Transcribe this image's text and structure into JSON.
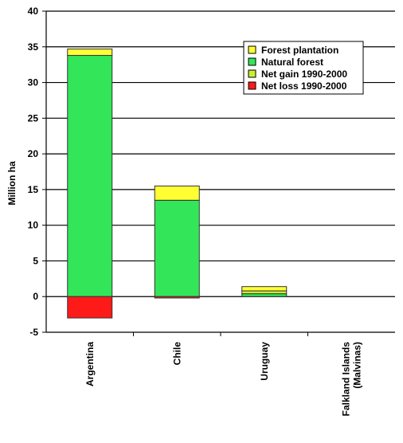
{
  "chart_data": {
    "type": "bar",
    "stacked": true,
    "title": "",
    "xlabel": "",
    "ylabel": "Million ha",
    "ylim": [
      -5,
      40
    ],
    "yticks": [
      -5,
      0,
      5,
      10,
      15,
      20,
      25,
      30,
      35,
      40
    ],
    "grid": true,
    "legend_position": "top-right",
    "categories": [
      "Argentina",
      "Chile",
      "Uruguay",
      "Falkland Islands (Malvinas)"
    ],
    "category_lines": [
      [
        "Argentina"
      ],
      [
        "Chile"
      ],
      [
        "Uruguay"
      ],
      [
        "Falkland Islands",
        "(Malvinas)"
      ]
    ],
    "series": [
      {
        "name": "Forest plantation",
        "color": "#ffff33",
        "values": [
          0.9,
          2.0,
          0.6,
          0
        ]
      },
      {
        "name": "Natural forest",
        "color": "#33e659",
        "values": [
          33.8,
          13.5,
          0.4,
          0
        ]
      },
      {
        "name": "Net gain 1990-2000",
        "color": "#c8ee33",
        "values": [
          0,
          0,
          0.4,
          0
        ]
      },
      {
        "name": "Net loss 1990-2000",
        "color": "#ff1a1a",
        "values": [
          -3.0,
          -0.2,
          0,
          0
        ]
      }
    ]
  }
}
